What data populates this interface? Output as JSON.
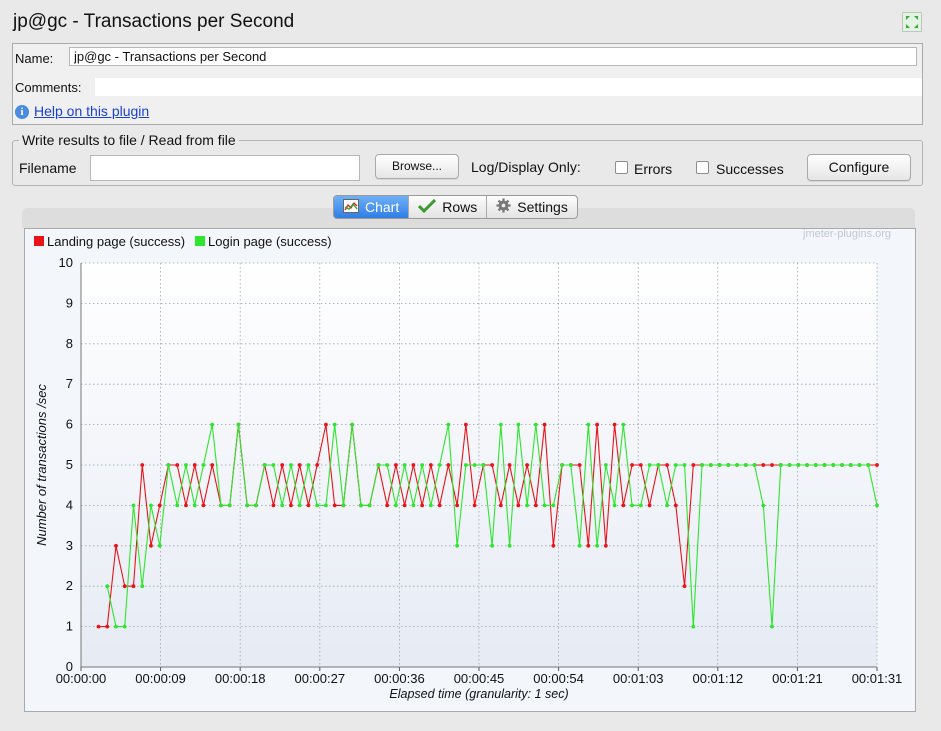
{
  "window": {
    "title": "jp@gc - Transactions per Second"
  },
  "form": {
    "name_label": "Name:",
    "name_value": "jp@gc - Transactions per Second",
    "comments_label": "Comments:",
    "help_link": "Help on this plugin"
  },
  "file_panel": {
    "legend": "Write results to file / Read from file",
    "filename_label": "Filename",
    "filename_value": "",
    "browse_label": "Browse...",
    "log_display_label": "Log/Display Only:",
    "errors_label": "Errors",
    "successes_label": "Successes",
    "errors_checked": false,
    "successes_checked": false,
    "configure_label": "Configure"
  },
  "tabs": [
    {
      "label": "Chart",
      "icon": "chart-icon",
      "active": true
    },
    {
      "label": "Rows",
      "icon": "checkmark-icon",
      "active": false
    },
    {
      "label": "Settings",
      "icon": "gear-icon",
      "active": false
    }
  ],
  "watermark": "jmeter-plugins.org",
  "chart_data": {
    "type": "line",
    "xlabel": "Elapsed time (granularity: 1 sec)",
    "ylabel": "Number of transactions /sec",
    "ylim": [
      0,
      10
    ],
    "xlim": [
      0,
      91
    ],
    "x_ticks": [
      "00:00:00",
      "00:00:09",
      "00:00:18",
      "00:00:27",
      "00:00:36",
      "00:00:45",
      "00:00:54",
      "00:01:03",
      "00:01:12",
      "00:01:21",
      "00:01:31"
    ],
    "y_ticks": [
      0,
      1,
      2,
      3,
      4,
      5,
      6,
      7,
      8,
      9,
      10
    ],
    "grid": true,
    "legend_position": "top-left",
    "x_unit": "seconds",
    "series": [
      {
        "name": "Landing page (success)",
        "color": "#e8141a",
        "x": [
          2,
          3,
          4,
          5,
          6,
          7,
          8,
          9,
          10,
          11,
          12,
          13,
          14,
          15,
          16,
          17,
          18,
          19,
          20,
          21,
          22,
          23,
          24,
          25,
          26,
          27,
          28,
          29,
          30,
          31,
          32,
          33,
          34,
          35,
          36,
          37,
          38,
          39,
          40,
          41,
          42,
          43,
          44,
          45,
          46,
          47,
          48,
          49,
          50,
          51,
          52,
          53,
          54,
          55,
          56,
          57,
          58,
          59,
          60,
          61,
          62,
          63,
          64,
          65,
          66,
          67,
          68,
          69,
          70,
          71,
          72,
          73,
          74,
          75,
          76,
          77,
          78,
          79,
          80,
          81,
          82,
          83,
          84,
          85,
          86,
          87,
          88,
          89,
          90,
          91
        ],
        "y": [
          1,
          1,
          3,
          2,
          2,
          5,
          3,
          4,
          5,
          5,
          4,
          5,
          4,
          5,
          4,
          4,
          6,
          4,
          4,
          5,
          4,
          5,
          4,
          5,
          4,
          5,
          6,
          4,
          4,
          6,
          4,
          4,
          5,
          4,
          5,
          4,
          5,
          4,
          5,
          4,
          5,
          4,
          6,
          4,
          5,
          5,
          4,
          5,
          4,
          5,
          4,
          6,
          3,
          5,
          5,
          5,
          3,
          6,
          3,
          6,
          4,
          5,
          5,
          4,
          5,
          5,
          4,
          2,
          5,
          5,
          5,
          5,
          5,
          5,
          5,
          5,
          5,
          5,
          5,
          5,
          5,
          5,
          5,
          5,
          5,
          5,
          5,
          5,
          5,
          5
        ]
      },
      {
        "name": "Login page (success)",
        "color": "#2ee62e",
        "x": [
          3,
          4,
          5,
          6,
          7,
          8,
          9,
          10,
          11,
          12,
          13,
          14,
          15,
          16,
          17,
          18,
          19,
          20,
          21,
          22,
          23,
          24,
          25,
          26,
          27,
          28,
          29,
          30,
          31,
          32,
          33,
          34,
          35,
          36,
          37,
          38,
          39,
          40,
          41,
          42,
          43,
          44,
          45,
          46,
          47,
          48,
          49,
          50,
          51,
          52,
          53,
          54,
          55,
          56,
          57,
          58,
          59,
          60,
          61,
          62,
          63,
          64,
          65,
          66,
          67,
          68,
          69,
          70,
          71,
          72,
          73,
          74,
          75,
          76,
          77,
          78,
          79,
          80,
          81,
          82,
          83,
          84,
          85,
          86,
          87,
          88,
          89,
          90,
          91
        ],
        "y": [
          2,
          1,
          1,
          4,
          2,
          4,
          3,
          5,
          4,
          5,
          4,
          5,
          6,
          4,
          4,
          6,
          4,
          4,
          5,
          5,
          4,
          5,
          4,
          5,
          4,
          4,
          6,
          4,
          6,
          4,
          4,
          5,
          5,
          4,
          5,
          4,
          5,
          4,
          5,
          6,
          3,
          5,
          5,
          5,
          3,
          6,
          3,
          6,
          4,
          6,
          4,
          4,
          5,
          5,
          3,
          6,
          3,
          5,
          4,
          6,
          4,
          4,
          5,
          5,
          4,
          5,
          5,
          1,
          5,
          5,
          5,
          5,
          5,
          5,
          5,
          4,
          1,
          5,
          5,
          5,
          5,
          5,
          5,
          5,
          5,
          5,
          5,
          5,
          4
        ]
      }
    ]
  }
}
